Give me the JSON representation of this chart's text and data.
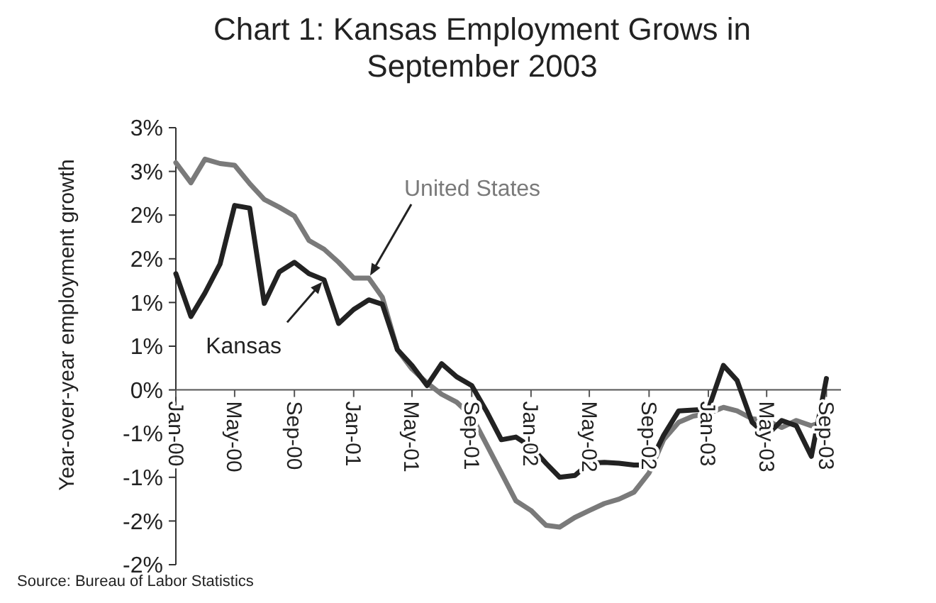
{
  "chart_data": {
    "type": "line",
    "title": "Chart 1: Kansas Employment Grows in September 2003",
    "ylabel": "Year-over-year employment growth",
    "x": [
      "2000-01",
      "2000-02",
      "2000-03",
      "2000-04",
      "2000-05",
      "2000-06",
      "2000-07",
      "2000-08",
      "2000-09",
      "2000-10",
      "2000-11",
      "2000-12",
      "2001-01",
      "2001-02",
      "2001-03",
      "2001-04",
      "2001-05",
      "2001-06",
      "2001-07",
      "2001-08",
      "2001-09",
      "2001-10",
      "2001-11",
      "2001-12",
      "2002-01",
      "2002-02",
      "2002-03",
      "2002-04",
      "2002-05",
      "2002-06",
      "2002-07",
      "2002-08",
      "2002-09",
      "2002-10",
      "2002-11",
      "2002-12",
      "2003-01",
      "2003-02",
      "2003-03",
      "2003-04",
      "2003-05",
      "2003-06",
      "2003-07",
      "2003-08",
      "2003-09"
    ],
    "series": [
      {
        "name": "United States",
        "color": "#7a7a7a",
        "values": [
          2.6,
          2.37,
          2.64,
          2.59,
          2.57,
          2.36,
          2.18,
          2.09,
          1.99,
          1.71,
          1.61,
          1.46,
          1.28,
          1.28,
          1.06,
          0.46,
          0.24,
          0.08,
          -0.05,
          -0.14,
          -0.3,
          -0.62,
          -0.95,
          -1.27,
          -1.38,
          -1.55,
          -1.57,
          -1.46,
          -1.38,
          -1.3,
          -1.25,
          -1.17,
          -0.95,
          -0.57,
          -0.37,
          -0.3,
          -0.27,
          -0.2,
          -0.24,
          -0.33,
          -0.35,
          -0.43,
          -0.35,
          -0.41,
          -0.35
        ]
      },
      {
        "name": "Kansas",
        "color": "#222222",
        "values": [
          1.33,
          0.84,
          1.11,
          1.44,
          2.11,
          2.08,
          0.99,
          1.35,
          1.46,
          1.33,
          1.26,
          0.76,
          0.92,
          1.03,
          0.98,
          0.46,
          0.28,
          0.05,
          0.3,
          0.15,
          0.05,
          -0.24,
          -0.57,
          -0.54,
          -0.65,
          -0.84,
          -1.0,
          -0.98,
          -0.84,
          -0.83,
          -0.84,
          -0.86,
          -0.86,
          -0.52,
          -0.24,
          -0.23,
          -0.22,
          0.28,
          0.11,
          -0.37,
          -0.52,
          -0.35,
          -0.41,
          -0.76,
          0.13
        ]
      }
    ],
    "xlim": [
      "2000-01",
      "2003-10"
    ],
    "xticks": [
      {
        "value": "2000-01",
        "label": "Jan-00"
      },
      {
        "value": "2000-05",
        "label": "May-00"
      },
      {
        "value": "2000-09",
        "label": "Sep-00"
      },
      {
        "value": "2001-01",
        "label": "Jan-01"
      },
      {
        "value": "2001-05",
        "label": "May-01"
      },
      {
        "value": "2001-09",
        "label": "Sep-01"
      },
      {
        "value": "2002-01",
        "label": "Jan-02"
      },
      {
        "value": "2002-05",
        "label": "May-02"
      },
      {
        "value": "2002-09",
        "label": "Sep-02"
      },
      {
        "value": "2003-01",
        "label": "Jan-03"
      },
      {
        "value": "2003-05",
        "label": "May-03"
      },
      {
        "value": "2003-09",
        "label": "Sep-03"
      }
    ],
    "ylim": [
      -2,
      3
    ],
    "yticks": [
      {
        "value": -2,
        "label": "-2%"
      },
      {
        "value": -1.5,
        "label": "-2%"
      },
      {
        "value": -1,
        "label": "-1%"
      },
      {
        "value": -0.5,
        "label": "-1%"
      },
      {
        "value": 0,
        "label": "0%"
      },
      {
        "value": 0.5,
        "label": "1%"
      },
      {
        "value": 1,
        "label": "1%"
      },
      {
        "value": 1.5,
        "label": "2%"
      },
      {
        "value": 2,
        "label": "2%"
      },
      {
        "value": 2.5,
        "label": "3%"
      },
      {
        "value": 3,
        "label": "3%"
      }
    ],
    "grid": false,
    "marker": "none",
    "line_style": "solid",
    "annotations": [
      "Source: Bureau of Labor Statistics"
    ]
  }
}
